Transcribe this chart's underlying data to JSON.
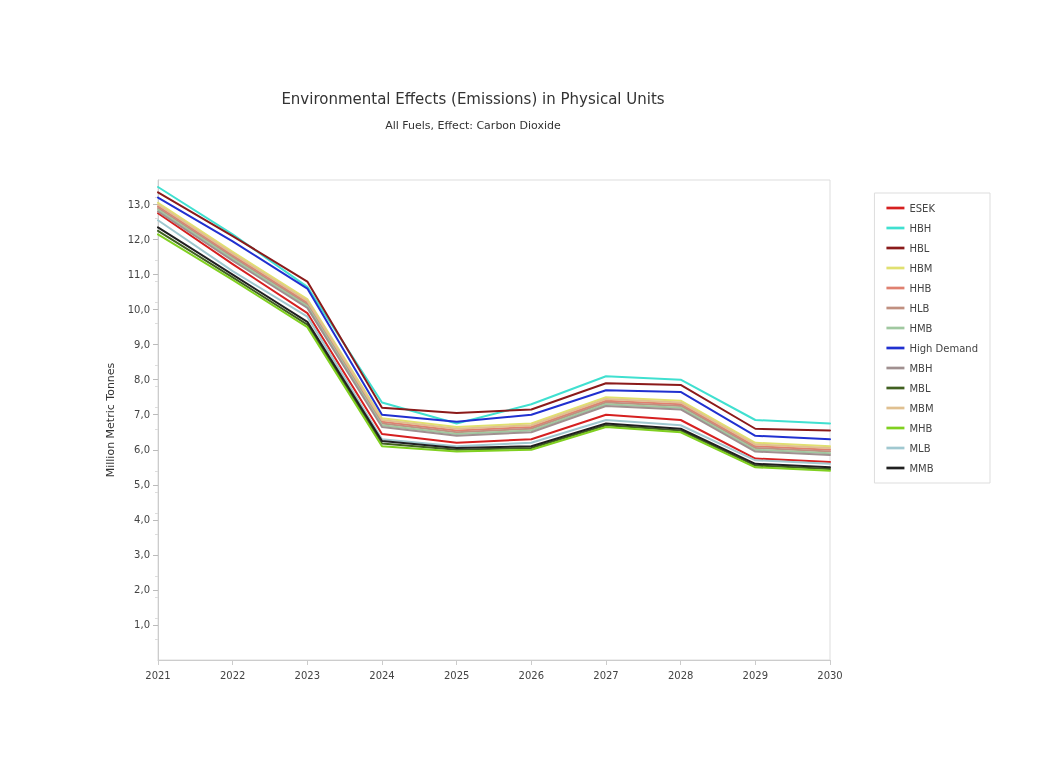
{
  "chart_data": {
    "type": "line",
    "title": "Environmental Effects (Emissions) in Physical Units",
    "subtitle": "All Fuels, Effect: Carbon Dioxide",
    "ylabel": "Million Metric Tonnes",
    "x": [
      2021,
      2022,
      2023,
      2024,
      2025,
      2026,
      2027,
      2028,
      2029,
      2030
    ],
    "xlim": [
      2021,
      2030
    ],
    "xticks": [
      2021,
      2022,
      2023,
      2024,
      2025,
      2026,
      2027,
      2028,
      2029,
      2030
    ],
    "ylim": [
      0,
      13.7
    ],
    "yticks": [
      {
        "value": 1,
        "label": "1,0"
      },
      {
        "value": 2,
        "label": "2,0"
      },
      {
        "value": 3,
        "label": "3,0"
      },
      {
        "value": 4,
        "label": "4,0"
      },
      {
        "value": 5,
        "label": "5,0"
      },
      {
        "value": 6,
        "label": "6,0"
      },
      {
        "value": 7,
        "label": "7,0"
      },
      {
        "value": 8,
        "label": "8,0"
      },
      {
        "value": 9,
        "label": "9,0"
      },
      {
        "value": 10,
        "label": "10,0"
      },
      {
        "value": 11,
        "label": "11,0"
      },
      {
        "value": 12,
        "label": "12,0"
      },
      {
        "value": 13,
        "label": "13,0"
      }
    ],
    "grid": false,
    "legend": "right",
    "marker": "none",
    "line_style": "solid",
    "series": [
      {
        "name": "ESEK",
        "color": "#d62020",
        "values": [
          12.75,
          11.3,
          9.9,
          6.45,
          6.2,
          6.3,
          7.0,
          6.85,
          5.75,
          5.65
        ]
      },
      {
        "name": "HBH",
        "color": "#40e0d0",
        "values": [
          13.5,
          12.15,
          10.65,
          7.35,
          6.75,
          7.3,
          8.1,
          8.0,
          6.85,
          6.75
        ]
      },
      {
        "name": "HBL",
        "color": "#8b1a1a",
        "values": [
          13.35,
          12.1,
          10.8,
          7.2,
          7.05,
          7.15,
          7.9,
          7.85,
          6.6,
          6.55
        ]
      },
      {
        "name": "HBM",
        "color": "#e0e070",
        "values": [
          13.05,
          11.65,
          10.3,
          6.9,
          6.65,
          6.75,
          7.5,
          7.4,
          6.2,
          6.1
        ]
      },
      {
        "name": "HHB",
        "color": "#e08070",
        "values": [
          12.95,
          11.55,
          10.2,
          6.8,
          6.55,
          6.65,
          7.4,
          7.3,
          6.1,
          6.0
        ]
      },
      {
        "name": "HLB",
        "color": "#c09080",
        "values": [
          12.9,
          11.5,
          10.15,
          6.75,
          6.5,
          6.6,
          7.35,
          7.25,
          6.05,
          5.95
        ]
      },
      {
        "name": "HMB",
        "color": "#a0c8a0",
        "values": [
          12.85,
          11.45,
          10.1,
          6.7,
          6.45,
          6.55,
          7.3,
          7.2,
          6.0,
          5.9
        ]
      },
      {
        "name": "High Demand",
        "color": "#2030d0",
        "values": [
          13.2,
          11.95,
          10.6,
          7.0,
          6.8,
          7.0,
          7.7,
          7.65,
          6.4,
          6.3
        ]
      },
      {
        "name": "MBH",
        "color": "#a09090",
        "values": [
          12.8,
          11.4,
          10.05,
          6.65,
          6.4,
          6.5,
          7.25,
          7.15,
          5.95,
          5.85
        ]
      },
      {
        "name": "MBL",
        "color": "#406020",
        "values": [
          12.25,
          10.92,
          9.57,
          6.18,
          6.0,
          6.05,
          6.7,
          6.55,
          5.55,
          5.45
        ]
      },
      {
        "name": "MBM",
        "color": "#e0c090",
        "values": [
          13.0,
          11.6,
          10.25,
          6.85,
          6.6,
          6.7,
          7.45,
          7.35,
          6.15,
          6.05
        ]
      },
      {
        "name": "MHB",
        "color": "#80d020",
        "values": [
          12.15,
          10.85,
          9.5,
          6.1,
          5.95,
          6.0,
          6.65,
          6.5,
          5.5,
          5.4
        ]
      },
      {
        "name": "MLB",
        "color": "#a0c8d0",
        "values": [
          12.55,
          11.1,
          9.8,
          6.3,
          6.1,
          6.2,
          6.85,
          6.7,
          5.7,
          5.6
        ]
      },
      {
        "name": "MMB",
        "color": "#202020",
        "values": [
          12.35,
          11.0,
          9.65,
          6.25,
          6.05,
          6.1,
          6.75,
          6.6,
          5.6,
          5.5
        ]
      }
    ]
  }
}
